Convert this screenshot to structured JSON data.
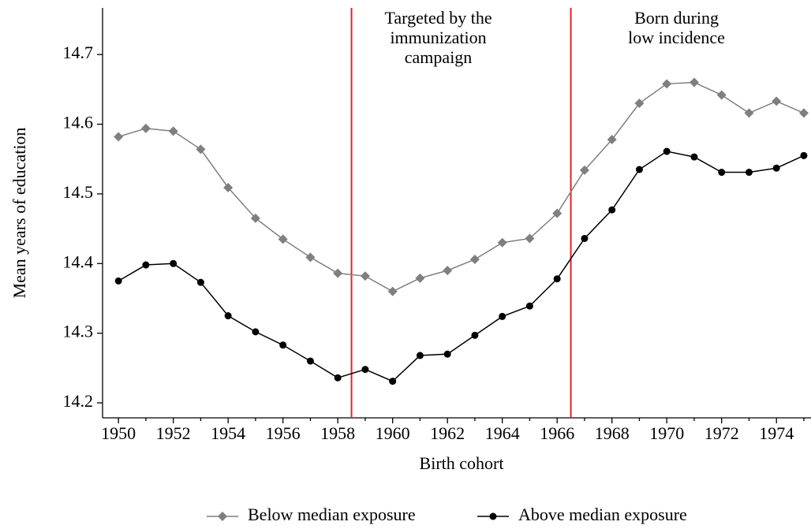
{
  "chart_data": {
    "type": "line",
    "x_label": "Birth cohort",
    "y_label": "Mean years of education",
    "x": [
      1950,
      1951,
      1952,
      1953,
      1954,
      1955,
      1956,
      1957,
      1958,
      1959,
      1960,
      1961,
      1962,
      1963,
      1964,
      1965,
      1966,
      1967,
      1968,
      1969,
      1970,
      1971,
      1972,
      1973,
      1974,
      1975
    ],
    "series": [
      {
        "name": "Below median exposure",
        "color": "#7f7f7f",
        "marker": "diamond",
        "values": [
          14.582,
          14.594,
          14.59,
          14.564,
          14.509,
          14.465,
          14.435,
          14.409,
          14.386,
          14.382,
          14.36,
          14.379,
          14.39,
          14.406,
          14.43,
          14.436,
          14.472,
          14.534,
          14.578,
          14.63,
          14.658,
          14.66,
          14.642,
          14.616,
          14.633,
          14.616
        ]
      },
      {
        "name": "Above median exposure",
        "color": "#000000",
        "marker": "circle",
        "values": [
          14.375,
          14.398,
          14.4,
          14.373,
          14.325,
          14.302,
          14.283,
          14.26,
          14.236,
          14.248,
          14.231,
          14.268,
          14.27,
          14.297,
          14.324,
          14.339,
          14.378,
          14.436,
          14.477,
          14.535,
          14.561,
          14.553,
          14.531,
          14.531,
          14.537,
          14.555
        ]
      }
    ],
    "xlim": [
      1949.42,
      1975.26
    ],
    "ylim": [
      14.1785,
      14.767
    ],
    "xticks": [
      1950,
      1952,
      1954,
      1956,
      1958,
      1960,
      1962,
      1964,
      1966,
      1968,
      1970,
      1972,
      1974
    ],
    "yticks": [
      14.2,
      14.3,
      14.4,
      14.5,
      14.6,
      14.7
    ],
    "vlines": {
      "color": "#e8202a",
      "values": [
        1958.5,
        1966.5
      ]
    },
    "annotations": [
      {
        "lines": [
          "Targeted by the",
          "immunization",
          "campaign"
        ]
      },
      {
        "lines": [
          "Born during",
          "low incidence"
        ]
      }
    ],
    "legend": "bottom"
  }
}
